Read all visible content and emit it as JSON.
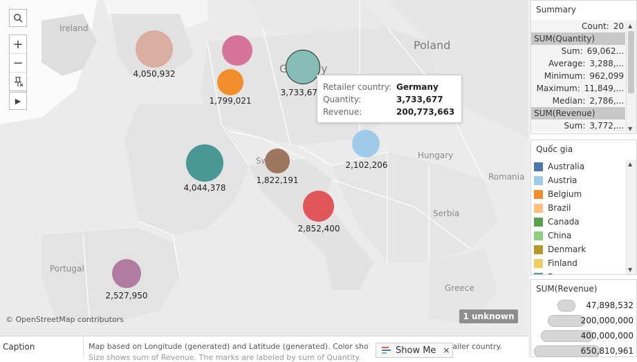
{
  "map": {
    "country_labels": [
      "Ireland",
      "Poland",
      "Hungary",
      "Romania",
      "Serbia",
      "Portugal",
      "Greece"
    ],
    "country_labels_partial": [
      "N",
      "Sw",
      "G",
      "y"
    ],
    "bubbles": [
      {
        "label": "4,050,932",
        "color": "#d9ada0"
      },
      {
        "label": "",
        "color": "#d6739b"
      },
      {
        "label": "1,799,021",
        "color": "#f28e2b"
      },
      {
        "label": "3,733,677",
        "color": "#86bcb6"
      },
      {
        "label": "2,102,206",
        "color": "#a0cbe8"
      },
      {
        "label": "4,044,378",
        "color": "#499894"
      },
      {
        "label": "1,822,191",
        "color": "#9d7660"
      },
      {
        "label": "2,852,400",
        "color": "#e15759"
      },
      {
        "label": "2,527,950",
        "color": "#b07aa1"
      }
    ],
    "attribution": "© OpenStreetMap contributors",
    "unknown_badge": "1 unknown"
  },
  "tooltip": {
    "rows": [
      {
        "key": "Retailer country:",
        "value": "Germany"
      },
      {
        "key": "Quantity:",
        "value": "3,733,677"
      },
      {
        "key": "Revenue:",
        "value": "200,773,663"
      }
    ]
  },
  "toolbar": {
    "search_icon": "search-icon",
    "zoom_in": "+",
    "zoom_out": "−",
    "pin": "pin-icon",
    "play": "▶"
  },
  "summary": {
    "title": "Summary",
    "count_label": "Count:",
    "count_value": "20",
    "quantity_header": "SUM(Quantity)",
    "quantity_rows": [
      {
        "key": "Sum:",
        "value": "69,062..."
      },
      {
        "key": "Average:",
        "value": "3,288,..."
      },
      {
        "key": "Minimum:",
        "value": "962,099"
      },
      {
        "key": "Maximum:",
        "value": "11,849,..."
      },
      {
        "key": "Median:",
        "value": "2,786,..."
      }
    ],
    "revenue_header": "SUM(Revenue)",
    "revenue_rows": [
      {
        "key": "Sum:",
        "value": "3,772,..."
      }
    ]
  },
  "legend": {
    "title": "Quốc gia",
    "items": [
      {
        "label": "Australia",
        "color": "#4e79a7"
      },
      {
        "label": "Austria",
        "color": "#a0cbe8"
      },
      {
        "label": "Belgium",
        "color": "#f28e2b"
      },
      {
        "label": "Brazil",
        "color": "#ffbe7d"
      },
      {
        "label": "Canada",
        "color": "#59a14f"
      },
      {
        "label": "China",
        "color": "#8cd17d"
      },
      {
        "label": "Denmark",
        "color": "#b6992d"
      },
      {
        "label": "Finland",
        "color": "#f1ce63"
      },
      {
        "label": "F",
        "color": "#499894"
      }
    ]
  },
  "size_legend": {
    "title": "SUM(Revenue)",
    "items": [
      "47,898,532",
      "200,000,000",
      "400,000,000",
      "650,810,961"
    ]
  },
  "caption": {
    "title": "Caption",
    "text": "Map based on Longitude (generated) and Latitude (generated).  Color sho",
    "text_tail": "tailer country.",
    "text_line2": "Size shows sum of Revenue. The marks are labeled by sum of Quantity."
  },
  "show_me": {
    "label": "Show Me",
    "close": "×"
  }
}
